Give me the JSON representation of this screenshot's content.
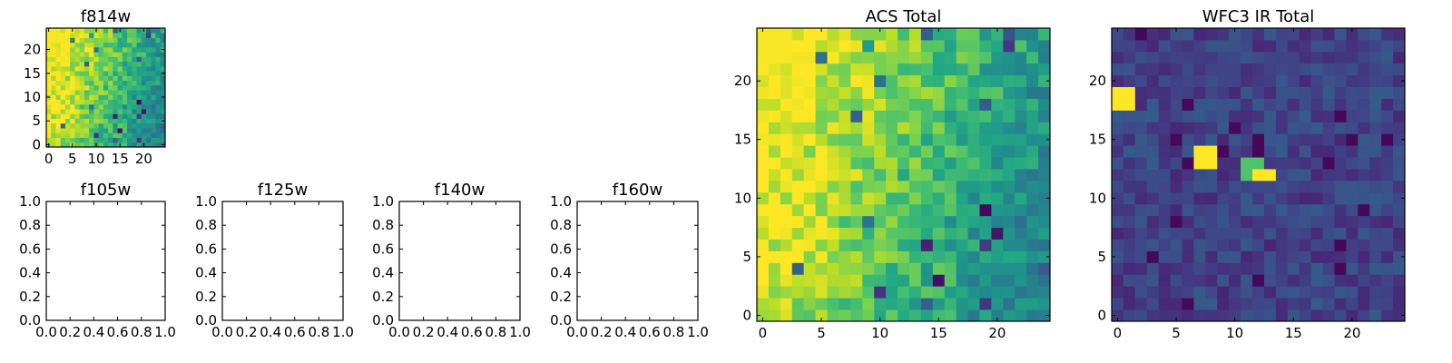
{
  "chart_data": [
    {
      "type": "heatmap",
      "title": "f814w",
      "colormap": "viridis",
      "grid_size": 25,
      "xlim": [
        -0.5,
        24.5
      ],
      "ylim": [
        -0.5,
        24.5
      ],
      "xticks": [
        0,
        5,
        10,
        15,
        20
      ],
      "yticks": [
        0,
        5,
        10,
        15,
        20
      ],
      "xtick_labels": [
        "0",
        "5",
        "10",
        "15",
        "20"
      ],
      "ytick_labels": [
        "0",
        "5",
        "10",
        "15",
        "20"
      ],
      "hot_spots": [],
      "seed": 11
    },
    {
      "type": "heatmap",
      "title": "f105w",
      "empty": true,
      "xlim": [
        0,
        1
      ],
      "ylim": [
        0,
        1
      ],
      "xticks": [
        0,
        0.2,
        0.4,
        0.6,
        0.8,
        1.0
      ],
      "yticks": [
        0,
        0.2,
        0.4,
        0.6,
        0.8,
        1.0
      ],
      "xtick_labels": [
        "0.0",
        "0.2",
        "0.4",
        "0.6",
        "0.8",
        "1.0"
      ],
      "ytick_labels": [
        "0.0",
        "0.2",
        "0.4",
        "0.6",
        "0.8",
        "1.0"
      ]
    },
    {
      "type": "heatmap",
      "title": "f125w",
      "empty": true,
      "xlim": [
        0,
        1
      ],
      "ylim": [
        0,
        1
      ],
      "xticks": [
        0,
        0.2,
        0.4,
        0.6,
        0.8,
        1.0
      ],
      "yticks": [
        0,
        0.2,
        0.4,
        0.6,
        0.8,
        1.0
      ],
      "xtick_labels": [
        "0.0",
        "0.2",
        "0.4",
        "0.6",
        "0.8",
        "1.0"
      ],
      "ytick_labels": [
        "0.0",
        "0.2",
        "0.4",
        "0.6",
        "0.8",
        "1.0"
      ]
    },
    {
      "type": "heatmap",
      "title": "f140w",
      "empty": true,
      "xlim": [
        0,
        1
      ],
      "ylim": [
        0,
        1
      ],
      "xticks": [
        0,
        0.2,
        0.4,
        0.6,
        0.8,
        1.0
      ],
      "yticks": [
        0,
        0.2,
        0.4,
        0.6,
        0.8,
        1.0
      ],
      "xtick_labels": [
        "0.0",
        "0.2",
        "0.4",
        "0.6",
        "0.8",
        "1.0"
      ],
      "ytick_labels": [
        "0.0",
        "0.2",
        "0.4",
        "0.6",
        "0.8",
        "1.0"
      ]
    },
    {
      "type": "heatmap",
      "title": "f160w",
      "empty": true,
      "xlim": [
        0,
        1
      ],
      "ylim": [
        0,
        1
      ],
      "xticks": [
        0,
        0.2,
        0.4,
        0.6,
        0.8,
        1.0
      ],
      "yticks": [
        0,
        0.2,
        0.4,
        0.6,
        0.8,
        1.0
      ],
      "xtick_labels": [
        "0.0",
        "0.2",
        "0.4",
        "0.6",
        "0.8",
        "1.0"
      ],
      "ytick_labels": [
        "0.0",
        "0.2",
        "0.4",
        "0.6",
        "0.8",
        "1.0"
      ]
    },
    {
      "type": "heatmap",
      "title": "ACS Total",
      "colormap": "viridis",
      "grid_size": 25,
      "xlim": [
        -0.5,
        24.5
      ],
      "ylim": [
        -0.5,
        24.5
      ],
      "xticks": [
        0,
        5,
        10,
        15,
        20
      ],
      "yticks": [
        0,
        5,
        10,
        15,
        20
      ],
      "xtick_labels": [
        "0",
        "5",
        "10",
        "15",
        "20"
      ],
      "ytick_labels": [
        "0",
        "5",
        "10",
        "15",
        "20"
      ],
      "hot_spots": [],
      "seed": 11
    },
    {
      "type": "heatmap",
      "title": "WFC3 IR Total",
      "colormap": "viridis",
      "grid_size": 25,
      "xlim": [
        -0.5,
        24.5
      ],
      "ylim": [
        -0.5,
        24.5
      ],
      "xticks": [
        0,
        5,
        10,
        15,
        20
      ],
      "yticks": [
        0,
        5,
        10,
        15,
        20
      ],
      "xtick_labels": [
        "0",
        "5",
        "10",
        "15",
        "20"
      ],
      "ytick_labels": [
        "0",
        "5",
        "10",
        "15",
        "20"
      ],
      "hot_spots": [
        {
          "x": 0,
          "y": 18,
          "w": 2,
          "h": 2,
          "value": 1.0
        },
        {
          "x": 7,
          "y": 13,
          "w": 2,
          "h": 2,
          "value": 1.0
        },
        {
          "x": 11,
          "y": 12,
          "w": 2,
          "h": 2,
          "value": 0.72
        },
        {
          "x": 12,
          "y": 12,
          "w": 2,
          "h": 1,
          "value": 1.0
        }
      ],
      "seed": 23
    }
  ]
}
